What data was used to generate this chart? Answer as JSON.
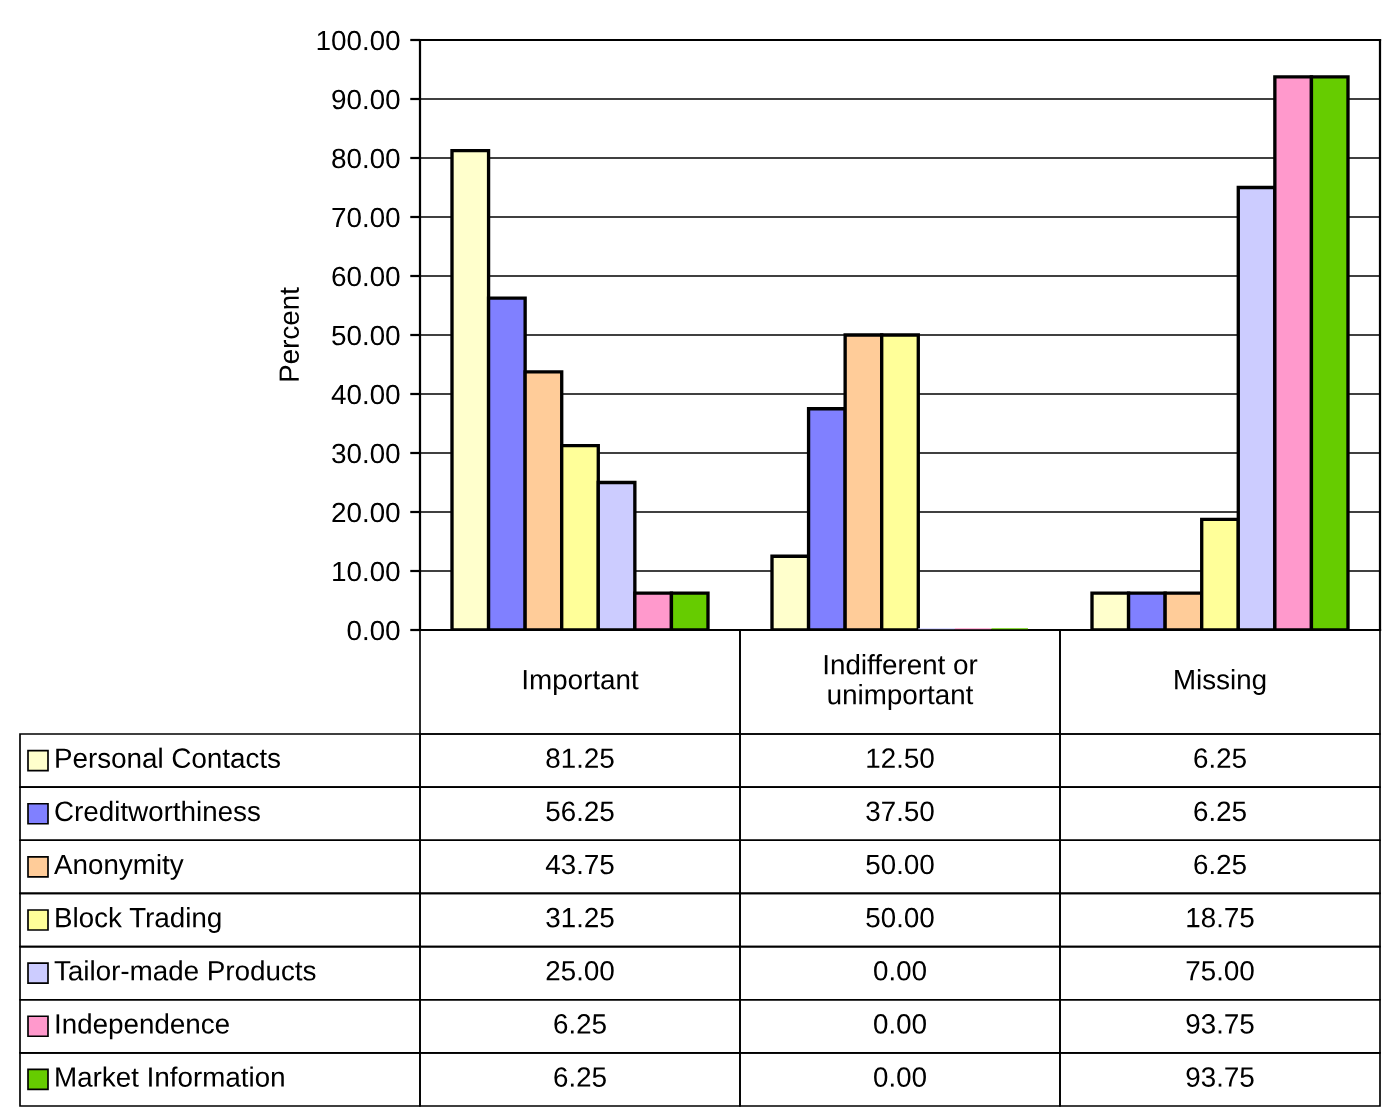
{
  "chart_data": {
    "type": "bar",
    "ylabel": "Percent",
    "categories": [
      "Important",
      "Indifferent or\nunimportant",
      "Missing"
    ],
    "series": [
      {
        "name": "Personal Contacts",
        "color": "#ffffcc",
        "values": [
          81.25,
          12.5,
          6.25
        ],
        "value_labels": [
          "81.25",
          "12.50",
          "6.25"
        ]
      },
      {
        "name": "Creditworthiness",
        "color": "#8080ff",
        "values": [
          56.25,
          37.5,
          6.25
        ],
        "value_labels": [
          "56.25",
          "37.50",
          "6.25"
        ]
      },
      {
        "name": "Anonymity",
        "color": "#ffcc99",
        "values": [
          43.75,
          50.0,
          6.25
        ],
        "value_labels": [
          "43.75",
          "50.00",
          "6.25"
        ]
      },
      {
        "name": "Block Trading",
        "color": "#ffff99",
        "values": [
          31.25,
          50.0,
          18.75
        ],
        "value_labels": [
          "31.25",
          "50.00",
          "18.75"
        ]
      },
      {
        "name": "Tailor-made Products",
        "color": "#ccccff",
        "values": [
          25.0,
          0.0,
          75.0
        ],
        "value_labels": [
          "25.00",
          "0.00",
          "75.00"
        ]
      },
      {
        "name": "Independence",
        "color": "#ff99cc",
        "values": [
          6.25,
          0.0,
          93.75
        ],
        "value_labels": [
          "6.25",
          "0.00",
          "93.75"
        ]
      },
      {
        "name": "Market Information",
        "color": "#66cc00",
        "values": [
          6.25,
          0.0,
          93.75
        ],
        "value_labels": [
          "6.25",
          "0.00",
          "93.75"
        ]
      }
    ],
    "ylim": [
      0,
      100
    ],
    "yticks": [
      {
        "value": 0,
        "label": "0.00"
      },
      {
        "value": 10,
        "label": "10.00"
      },
      {
        "value": 20,
        "label": "20.00"
      },
      {
        "value": 30,
        "label": "30.00"
      },
      {
        "value": 40,
        "label": "40.00"
      },
      {
        "value": 50,
        "label": "50.00"
      },
      {
        "value": 60,
        "label": "60.00"
      },
      {
        "value": 70,
        "label": "70.00"
      },
      {
        "value": 80,
        "label": "80.00"
      },
      {
        "value": 90,
        "label": "90.00"
      },
      {
        "value": 100,
        "label": "100.00"
      }
    ],
    "grid": "y",
    "legend": "bottom"
  }
}
